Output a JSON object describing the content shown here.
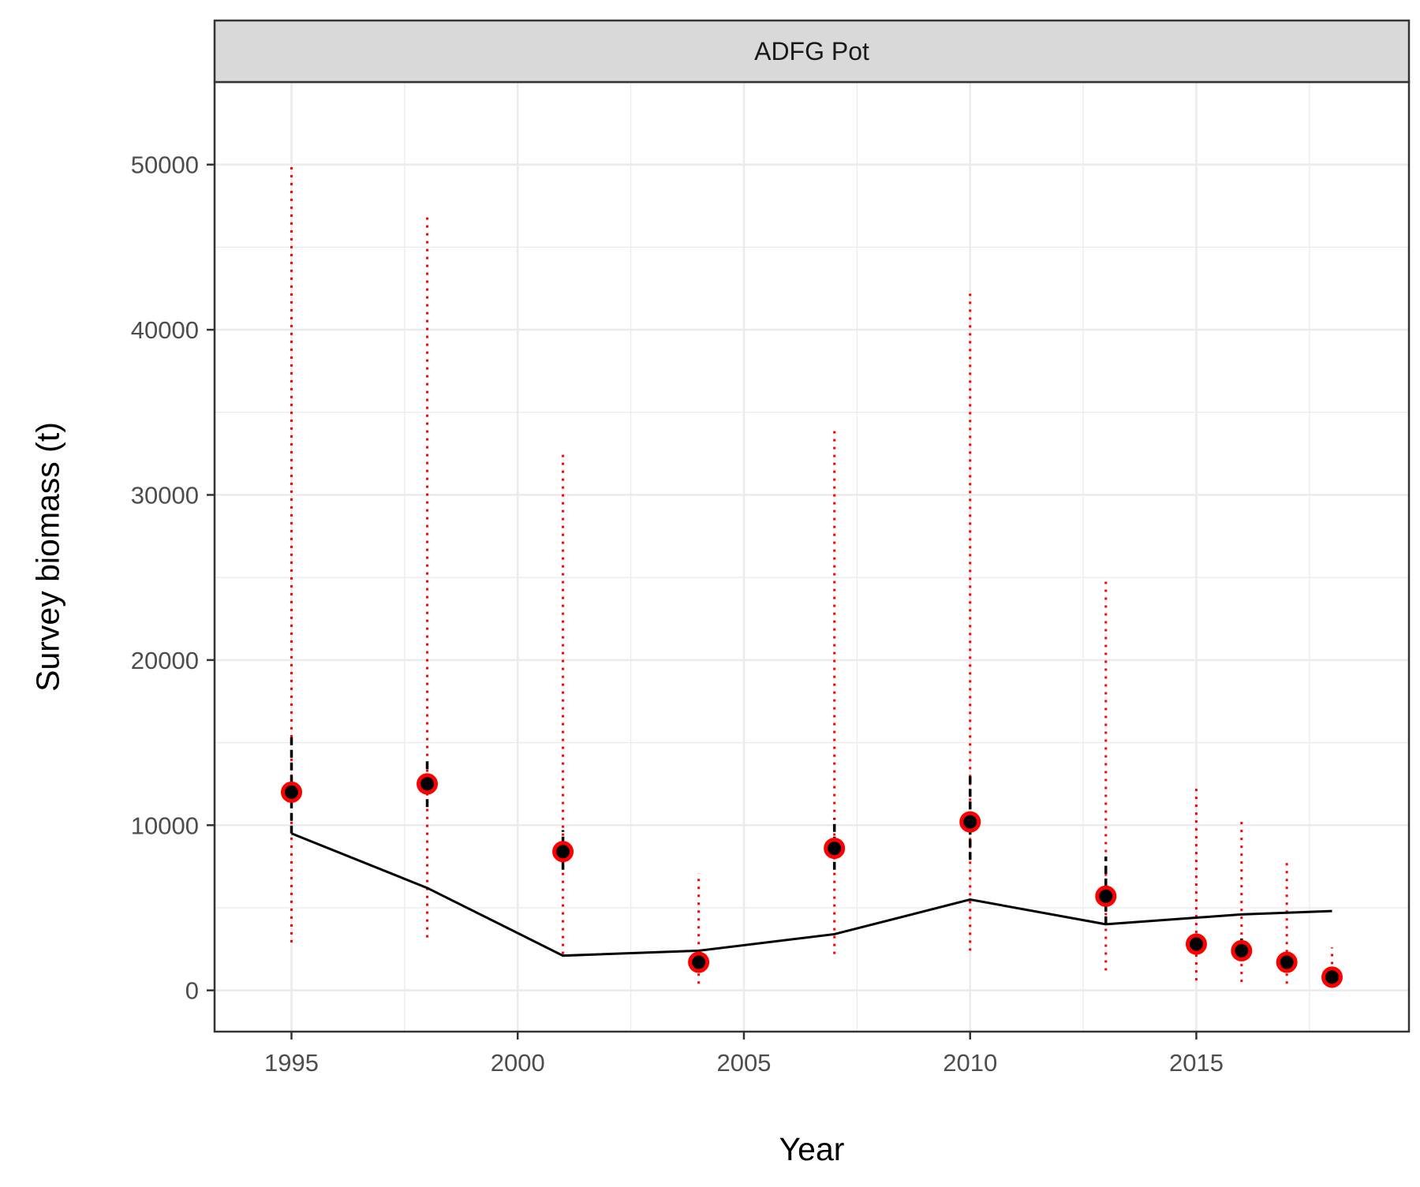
{
  "chart_data": {
    "type": "scatter",
    "facet": "ADFG Pot",
    "xlabel": "Year",
    "ylabel": "Survey biomass (t)",
    "xlim": [
      1993.3,
      2019.7
    ],
    "ylim": [
      -2500,
      55000
    ],
    "x_ticks": [
      1995,
      2000,
      2005,
      2010,
      2015
    ],
    "y_ticks": [
      0,
      10000,
      20000,
      30000,
      40000,
      50000
    ],
    "grid": true,
    "observed": {
      "x": [
        1995,
        1998,
        2001,
        2004,
        2007,
        2010,
        2013,
        2015,
        2016,
        2017,
        2018
      ],
      "y": [
        12000,
        12500,
        8400,
        1700,
        8600,
        10200,
        5700,
        2800,
        2400,
        1700,
        800
      ],
      "ci_inner_lower": [
        9500,
        11100,
        7300,
        1300,
        7300,
        7900,
        4000,
        2200,
        1900,
        1400,
        600
      ],
      "ci_inner_upper": [
        15500,
        14100,
        9700,
        2200,
        10400,
        13100,
        8100,
        3700,
        3300,
        2200,
        1100
      ],
      "ci_outer_lower": [
        2900,
        3200,
        2200,
        400,
        2200,
        2400,
        1200,
        600,
        500,
        400,
        150
      ],
      "ci_outer_upper": [
        50000,
        46800,
        32600,
        7100,
        34000,
        42300,
        25000,
        12400,
        10300,
        7800,
        2600
      ]
    },
    "predicted": {
      "x": [
        1995,
        1998,
        2001,
        2004,
        2007,
        2010,
        2013,
        2015,
        2016,
        2017,
        2018
      ],
      "y": [
        9500,
        6200,
        2100,
        2400,
        3400,
        5500,
        4000,
        4400,
        4600,
        4700,
        4800
      ]
    },
    "colors": {
      "point_outline": "#ff0000",
      "point_fill": "#000000",
      "outer_interval": "#ff0000",
      "inner_interval": "#000000",
      "fit_line": "#000000",
      "strip_fill": "#d9d9d9",
      "grid": "#ebebeb",
      "panel_border": "#333333"
    }
  }
}
